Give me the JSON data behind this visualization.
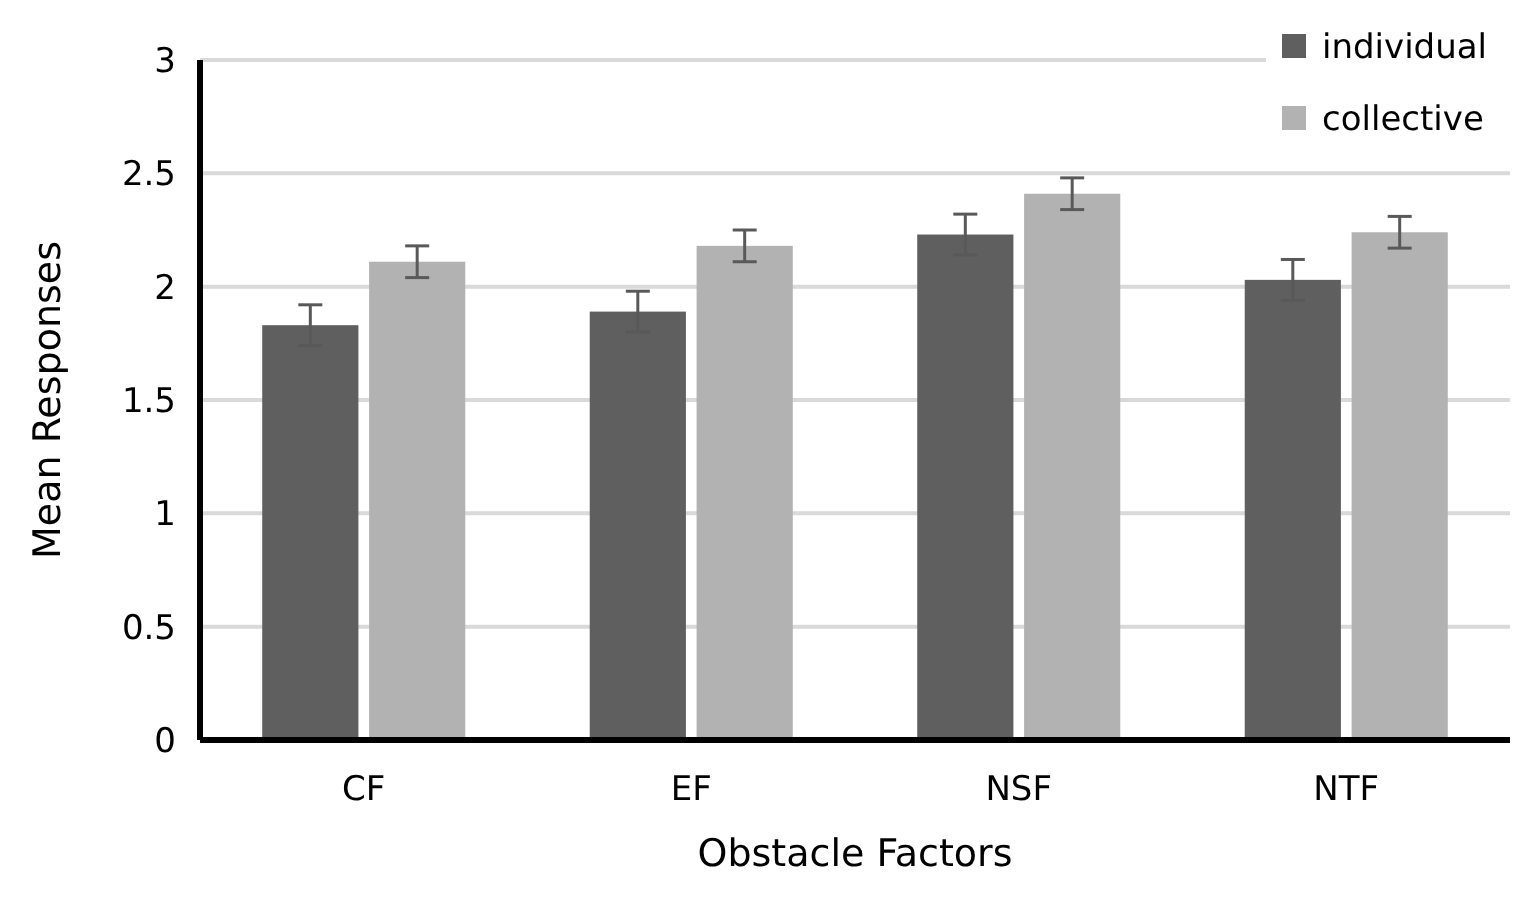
{
  "chart_data": {
    "type": "bar",
    "xlabel": "Obstacle Factors",
    "ylabel": "Mean Responses",
    "categories": [
      "CF",
      "EF",
      "NSF",
      "NTF"
    ],
    "series": [
      {
        "name": "individual",
        "color": "#5f5f5f",
        "values": [
          1.83,
          1.89,
          2.23,
          2.03
        ],
        "errors": [
          0.09,
          0.09,
          0.09,
          0.09
        ]
      },
      {
        "name": "collective",
        "color": "#b2b2b2",
        "values": [
          2.11,
          2.18,
          2.41,
          2.24
        ],
        "errors": [
          0.07,
          0.07,
          0.07,
          0.07
        ]
      }
    ],
    "ylim": [
      0,
      3
    ],
    "yticks": [
      0,
      0.5,
      1,
      1.5,
      2,
      2.5,
      3
    ],
    "grid": "y",
    "legend": "top right"
  }
}
